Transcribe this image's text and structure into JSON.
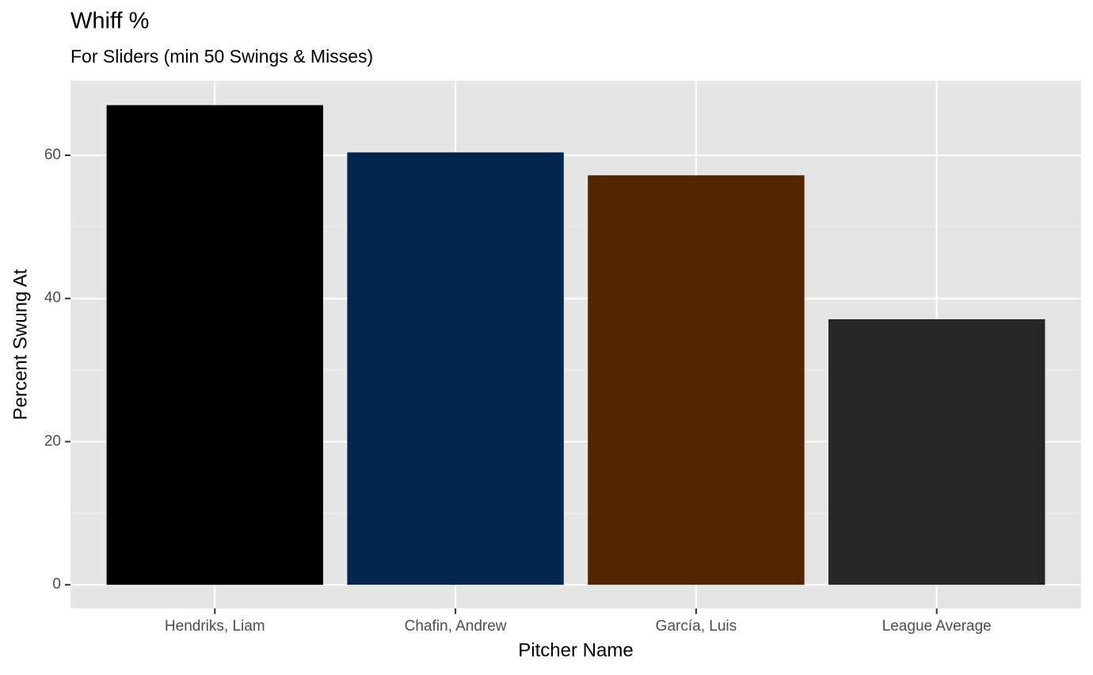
{
  "chart_data": {
    "type": "bar",
    "title": "Whiff %",
    "subtitle": "For Sliders (min 50 Swings & Misses)",
    "x_label": "Pitcher Name",
    "y_label": "Percent Swung At",
    "categories": [
      "Hendriks, Liam",
      "Chafin, Andrew",
      "García, Luis",
      "League Average"
    ],
    "values": [
      67.0,
      60.4,
      57.2,
      37.1
    ],
    "colors": [
      "#000000",
      "#03264f",
      "#522600",
      "#262626"
    ],
    "ylim": [
      -3.3,
      70.4
    ],
    "yticks": [
      0,
      20,
      40,
      60
    ],
    "grid": true
  }
}
